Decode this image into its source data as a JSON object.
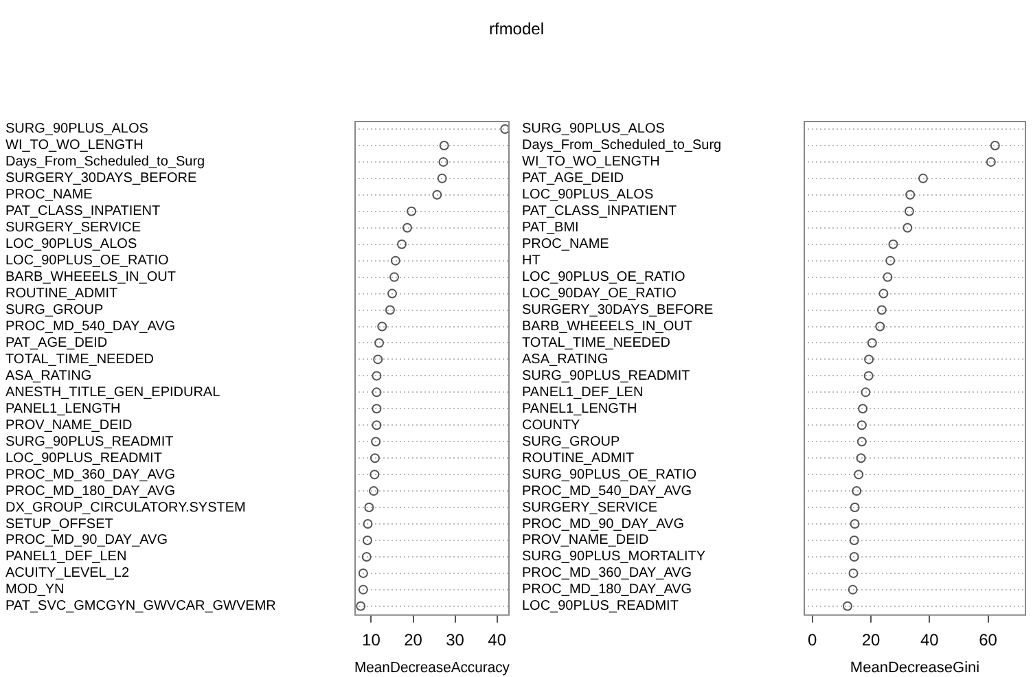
{
  "chart_data": [
    {
      "type": "scatter",
      "title": "rfmodel",
      "orientation": "horizontal",
      "xlabel": "MeanDecreaseAccuracy",
      "color": "#555555",
      "marker": "circle",
      "grid": "y",
      "legend": false,
      "categories": [
        "SURG_90PLUS_ALOS",
        "WI_TO_WO_LENGTH",
        "Days_From_Scheduled_to_Surg",
        "SURGERY_30DAYS_BEFORE",
        "PROC_NAME",
        "PAT_CLASS_INPATIENT",
        "SURGERY_SERVICE",
        "LOC_90PLUS_ALOS",
        "LOC_90PLUS_OE_RATIO",
        "BARB_WHEEELS_IN_OUT",
        "ROUTINE_ADMIT",
        "SURG_GROUP",
        "PROC_MD_540_DAY_AVG",
        "PAT_AGE_DEID",
        "TOTAL_TIME_NEEDED",
        "ASA_RATING",
        "ANESTH_TITLE_GEN_EPIDURAL",
        "PANEL1_LENGTH",
        "PROV_NAME_DEID",
        "SURG_90PLUS_READMIT",
        "LOC_90PLUS_READMIT",
        "PROC_MD_360_DAY_AVG",
        "PROC_MD_180_DAY_AVG",
        "DX_GROUP_CIRCULATORY.SYSTEM",
        "SETUP_OFFSET",
        "PROC_MD_90_DAY_AVG",
        "PANEL1_DEF_LEN",
        "ACUITY_LEVEL_L2",
        "MOD_YN",
        "PAT_SVC_GMCGYN_GWVCAR_GWVEMR"
      ],
      "values": [
        41.9,
        27.4,
        27.2,
        26.9,
        25.7,
        19.6,
        18.6,
        17.3,
        15.8,
        15.5,
        15.0,
        14.5,
        12.6,
        11.9,
        11.6,
        11.3,
        11.3,
        11.3,
        11.3,
        11.1,
        10.9,
        10.8,
        10.6,
        9.5,
        9.2,
        9.1,
        8.9,
        8.1,
        8.1,
        7.5
      ],
      "xlim": [
        6,
        43
      ],
      "xticks": [
        10,
        20,
        30,
        40
      ]
    },
    {
      "type": "scatter",
      "orientation": "horizontal",
      "xlabel": "MeanDecreaseGini",
      "color": "#555555",
      "marker": "circle",
      "grid": "y",
      "legend": false,
      "categories": [
        "SURG_90PLUS_ALOS",
        "Days_From_Scheduled_to_Surg",
        "WI_TO_WO_LENGTH",
        "PAT_AGE_DEID",
        "LOC_90PLUS_ALOS",
        "PAT_CLASS_INPATIENT",
        "PAT_BMI",
        "PROC_NAME",
        "HT",
        "LOC_90PLUS_OE_RATIO",
        "LOC_90DAY_OE_RATIO",
        "SURGERY_30DAYS_BEFORE",
        "BARB_WHEEELS_IN_OUT",
        "TOTAL_TIME_NEEDED",
        "ASA_RATING",
        "SURG_90PLUS_READMIT",
        "PANEL1_DEF_LEN",
        "PANEL1_LENGTH",
        "COUNTY",
        "SURG_GROUP",
        "ROUTINE_ADMIT",
        "SURG_90PLUS_OE_RATIO",
        "PROC_MD_540_DAY_AVG",
        "SURGERY_SERVICE",
        "PROC_MD_90_DAY_AVG",
        "PROV_NAME_DEID",
        "SURG_90PLUS_MORTALITY",
        "PROC_MD_360_DAY_AVG",
        "PROC_MD_180_DAY_AVG",
        "LOC_90PLUS_READMIT"
      ],
      "values": [
        null,
        62.4,
        61.0,
        37.8,
        33.4,
        33.1,
        32.5,
        27.6,
        26.6,
        25.7,
        24.3,
        23.7,
        23.1,
        20.4,
        19.3,
        19.2,
        18.2,
        17.2,
        16.9,
        16.9,
        16.6,
        15.8,
        15.1,
        14.5,
        14.5,
        14.3,
        14.3,
        14.0,
        13.8,
        12.0
      ],
      "xlim": [
        -3,
        73
      ],
      "xticks": [
        0,
        20,
        40,
        60
      ]
    }
  ]
}
